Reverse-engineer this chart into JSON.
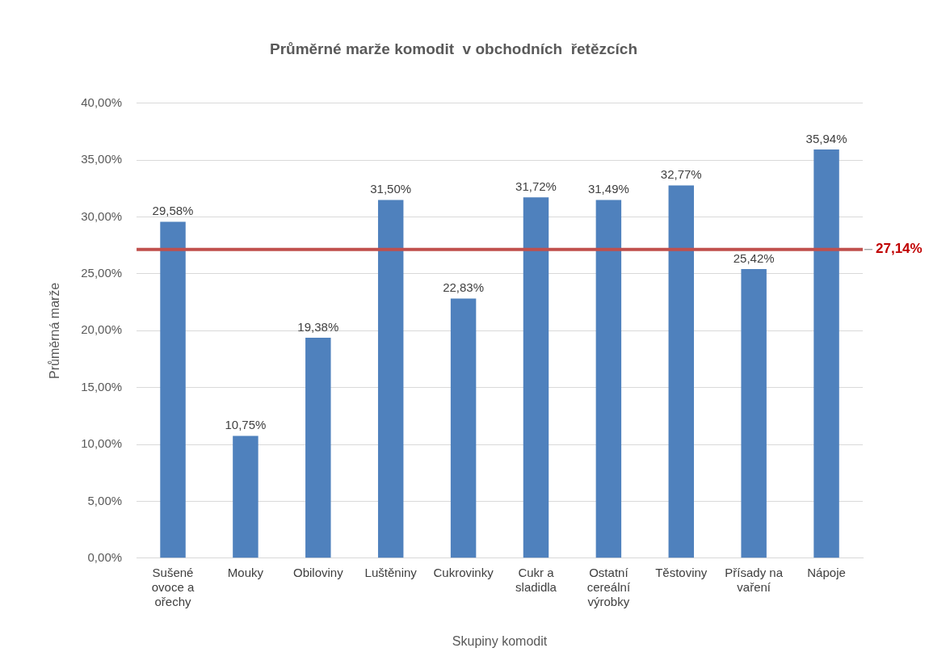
{
  "chart_data": {
    "type": "bar",
    "title": "Průměrné marže komodit  v obchodních  řetězcích",
    "xlabel": "Skupiny komodit",
    "ylabel": "Průměrná marže",
    "categories": [
      "Sušené ovoce a ořechy",
      "Mouky",
      "Obiloviny",
      "Luštěniny",
      "Cukrovinky",
      "Cukr a sladidla",
      "Ostatní cereální výrobky",
      "Těstoviny",
      "Přísady na vaření",
      "Nápoje"
    ],
    "values": [
      29.58,
      10.75,
      19.38,
      31.5,
      22.83,
      31.72,
      31.49,
      32.77,
      25.42,
      35.94
    ],
    "value_labels": [
      "29,58%",
      "10,75%",
      "19,38%",
      "31,50%",
      "22,83%",
      "31,72%",
      "31,49%",
      "32,77%",
      "25,42%",
      "35,94%"
    ],
    "color": "#4f81bd",
    "ylim": [
      0,
      40
    ],
    "yticks": [
      {
        "value": 0,
        "label": "0,00%"
      },
      {
        "value": 5,
        "label": "5,00%"
      },
      {
        "value": 10,
        "label": "10,00%"
      },
      {
        "value": 15,
        "label": "15,00%"
      },
      {
        "value": 20,
        "label": "20,00%"
      },
      {
        "value": 25,
        "label": "25,00%"
      },
      {
        "value": 30,
        "label": "30,00%"
      },
      {
        "value": 35,
        "label": "35,00%"
      },
      {
        "value": 40,
        "label": "40,00%"
      }
    ],
    "grid": "y",
    "ref_lines": [
      {
        "axis": "y",
        "value": 27.14,
        "label": "27,14%",
        "color": "#c0504d"
      }
    ]
  }
}
